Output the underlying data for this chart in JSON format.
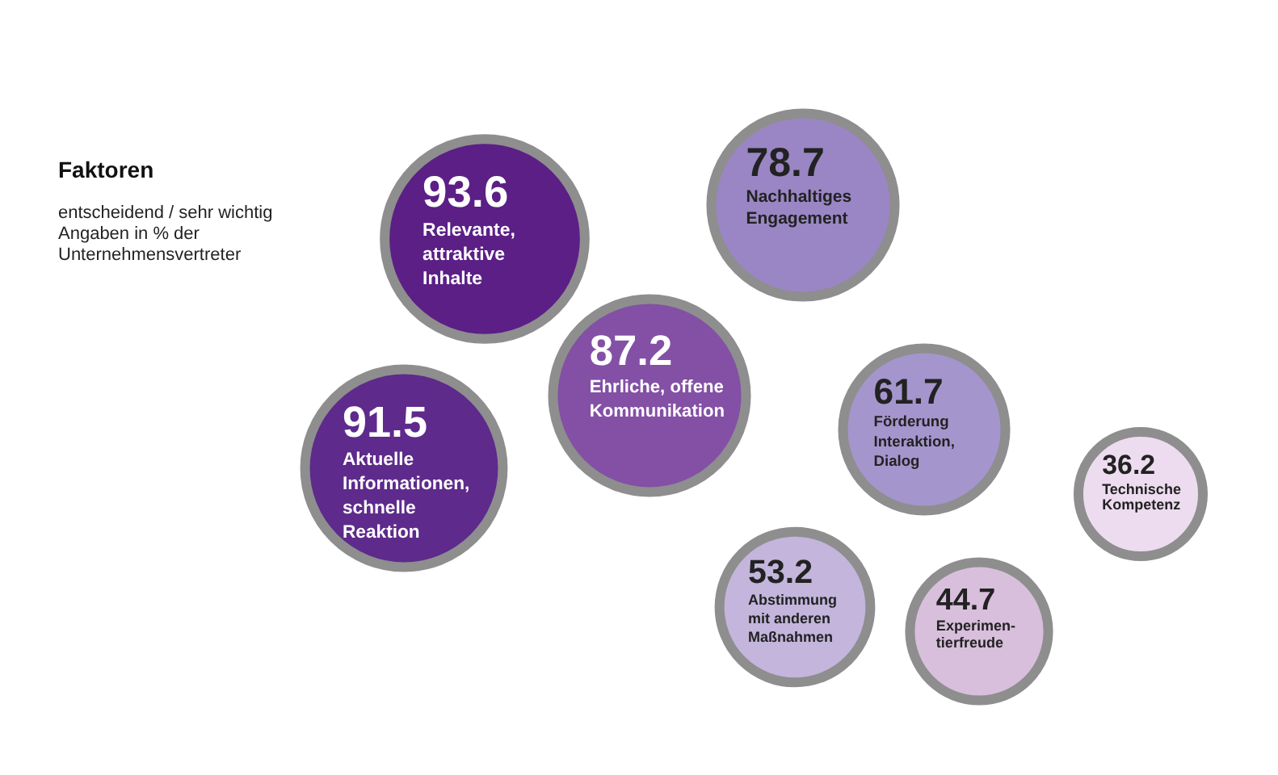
{
  "chart_data": {
    "type": "other",
    "title": "Faktoren",
    "subtitle": "entscheidend / sehr wichtig\nAngaben in % der\nUnternehmensvertreter",
    "categories": [
      "Relevante,\nattraktive\nInhalte",
      "Nachhaltiges\nEngagement",
      "Aktuelle\nInformationen,\nschnelle\nReaktion",
      "Ehrliche, offene\nKommunikation",
      "Förderung\nInteraktion,\nDialog",
      "Abstimmung\nmit anderen\nMaßnahmen",
      "Experimen-\ntierfreude",
      "Technische\nKompetenz"
    ],
    "values": [
      93.6,
      78.7,
      91.5,
      87.2,
      61.7,
      53.2,
      44.7,
      36.2
    ],
    "colors": [
      "#5b1f86",
      "#9a86c4",
      "#5e2a8c",
      "#8350a5",
      "#a595cd",
      "#c3b5dc",
      "#d8bfdc",
      "#eddcef"
    ],
    "data_labels": true
  }
}
